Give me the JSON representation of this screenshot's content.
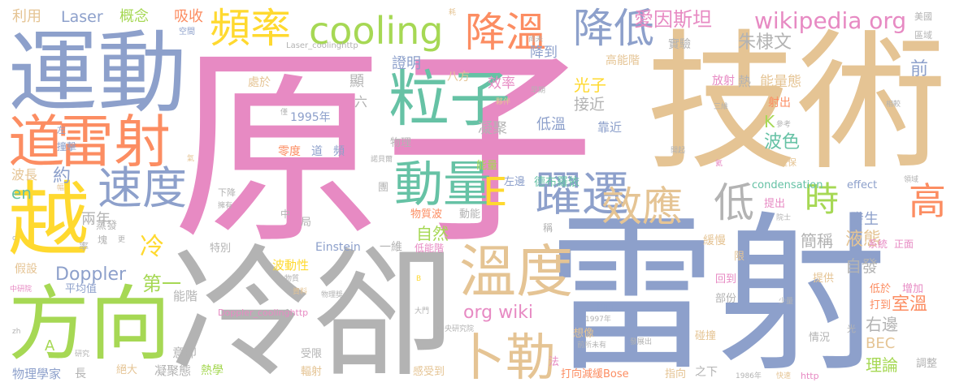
{
  "words": [
    {
      "text": "原子",
      "color": "#e78ac3"
    },
    {
      "text": "技術",
      "color": "#e5c494"
    },
    {
      "text": "雷射",
      "color": "#8da0cb"
    },
    {
      "text": "冷卻",
      "color": "#b3b3b3"
    },
    {
      "text": "運動",
      "color": "#8da0cb"
    },
    {
      "text": "越",
      "color": "#ffd92f"
    },
    {
      "text": "方向",
      "color": "#a6d854"
    },
    {
      "text": "雷射",
      "color": "#fc8d62"
    },
    {
      "text": "道",
      "color": "#fc8d62"
    },
    {
      "text": "粒子",
      "color": "#66c2a5"
    },
    {
      "text": "速度",
      "color": "#8da0cb"
    },
    {
      "text": "溫度",
      "color": "#e5c494"
    },
    {
      "text": "動量",
      "color": "#66c2a5"
    },
    {
      "text": "卜勒",
      "color": "#e5c494"
    },
    {
      "text": "躍遷",
      "color": "#8da0cb"
    },
    {
      "text": "效應",
      "color": "#e5c494"
    },
    {
      "text": "降溫",
      "color": "#fc8d62"
    },
    {
      "text": "降低",
      "color": "#8da0cb"
    },
    {
      "text": "頻率",
      "color": "#ffd92f"
    },
    {
      "text": "cooling",
      "color": "#a6d854"
    },
    {
      "text": "低",
      "color": "#b3b3b3"
    },
    {
      "text": "時",
      "color": "#a6d854"
    },
    {
      "text": "高",
      "color": "#fc8d62"
    },
    {
      "text": "E",
      "color": "#ffd92f"
    },
    {
      "text": "wikipedia org",
      "color": "#e78ac3"
    },
    {
      "text": "愛因斯坦",
      "color": "#e78ac3"
    },
    {
      "text": "朱棣文",
      "color": "#b3b3b3"
    },
    {
      "text": "Laser",
      "color": "#8da0cb"
    },
    {
      "text": "概念",
      "color": "#a6d854"
    },
    {
      "text": "吸收",
      "color": "#fc8d62"
    },
    {
      "text": "利用",
      "color": "#e5c494"
    },
    {
      "text": "Doppler",
      "color": "#8da0cb"
    },
    {
      "text": "冷",
      "color": "#ffd92f"
    },
    {
      "text": "第一",
      "color": "#a6d854"
    },
    {
      "text": "兩年",
      "color": "#b3b3b3"
    },
    {
      "text": "約",
      "color": "#8da0cb"
    },
    {
      "text": "en",
      "color": "#66c2a5"
    },
    {
      "text": "波長",
      "color": "#e5c494"
    },
    {
      "text": "org wiki",
      "color": "#e78ac3"
    },
    {
      "text": "自然",
      "color": "#a6d854"
    },
    {
      "text": "液態",
      "color": "#e5c494"
    },
    {
      "text": "自發",
      "color": "#b3b3b3"
    },
    {
      "text": "右邊",
      "color": "#b3b3b3"
    },
    {
      "text": "BEC",
      "color": "#e5c494"
    },
    {
      "text": "理論",
      "color": "#a6d854"
    },
    {
      "text": "室溫",
      "color": "#fc8d62"
    },
    {
      "text": "簡稱",
      "color": "#b3b3b3"
    },
    {
      "text": "發生",
      "color": "#8da0cb"
    },
    {
      "text": "波色",
      "color": "#66c2a5"
    },
    {
      "text": "K",
      "color": "#a6d854"
    },
    {
      "text": "能量態",
      "color": "#e5c494"
    },
    {
      "text": "前",
      "color": "#8da0cb"
    },
    {
      "text": "熱",
      "color": "#b3b3b3"
    },
    {
      "text": "放射",
      "color": "#e78ac3"
    },
    {
      "text": "射出",
      "color": "#fc8d62"
    },
    {
      "text": "高能階",
      "color": "#e5c494"
    },
    {
      "text": "實驗",
      "color": "#b3b3b3"
    },
    {
      "text": "降到",
      "color": "#8da0cb"
    },
    {
      "text": "效率",
      "color": "#e78ac3"
    },
    {
      "text": "光子",
      "color": "#ffd92f"
    },
    {
      "text": "接近",
      "color": "#b3b3b3"
    },
    {
      "text": "低溫",
      "color": "#8da0cb"
    },
    {
      "text": "靠近",
      "color": "#8da0cb"
    },
    {
      "text": "凝聚",
      "color": "#b3b3b3"
    },
    {
      "text": "證明",
      "color": "#8da0cb"
    },
    {
      "text": "顯",
      "color": "#b3b3b3"
    },
    {
      "text": "處於",
      "color": "#e5c494"
    },
    {
      "text": "八方",
      "color": "#e5c494"
    },
    {
      "text": "六",
      "color": "#b3b3b3"
    },
    {
      "text": "1995年",
      "color": "#8da0cb"
    },
    {
      "text": "零度",
      "color": "#fc8d62"
    },
    {
      "text": "道",
      "color": "#8da0cb"
    },
    {
      "text": "頻",
      "color": "#8da0cb"
    },
    {
      "text": "物理",
      "color": "#b3b3b3"
    },
    {
      "text": "能量",
      "color": "#a6d854"
    },
    {
      "text": "左邊",
      "color": "#8da0cb"
    },
    {
      "text": "德布羅依",
      "color": "#66c2a5"
    },
    {
      "text": "condensation",
      "color": "#66c2a5"
    },
    {
      "text": "effect",
      "color": "#8da0cb"
    },
    {
      "text": "提出",
      "color": "#e78ac3"
    },
    {
      "text": "系統",
      "color": "#e78ac3"
    },
    {
      "text": "正面",
      "color": "#e78ac3"
    },
    {
      "text": "物質波",
      "color": "#fc8d62"
    },
    {
      "text": "動能",
      "color": "#b3b3b3"
    },
    {
      "text": "緩慢",
      "color": "#e5c494"
    },
    {
      "text": "Einstein",
      "color": "#8da0cb"
    },
    {
      "text": "一維",
      "color": "#b3b3b3"
    },
    {
      "text": "低能階",
      "color": "#e78ac3"
    },
    {
      "text": "波動性",
      "color": "#ffd92f"
    },
    {
      "text": "特別",
      "color": "#b3b3b3"
    },
    {
      "text": "能階",
      "color": "#b3b3b3"
    },
    {
      "text": "平均值",
      "color": "#8da0cb"
    },
    {
      "text": "假設",
      "color": "#e5c494"
    },
    {
      "text": "蒸發",
      "color": "#b3b3b3"
    },
    {
      "text": "意即",
      "color": "#b3b3b3"
    },
    {
      "text": "凝聚態",
      "color": "#b3b3b3"
    },
    {
      "text": "熱學",
      "color": "#a6d854"
    },
    {
      "text": "絕大",
      "color": "#e5c494"
    },
    {
      "text": "物理學家",
      "color": "#8da0cb"
    },
    {
      "text": "長",
      "color": "#b3b3b3"
    },
    {
      "text": "受限",
      "color": "#b3b3b3"
    },
    {
      "text": "輻射",
      "color": "#e5c494"
    },
    {
      "text": "感受到",
      "color": "#e5c494"
    },
    {
      "text": "打向減緩Bose",
      "color": "#fc8d62"
    },
    {
      "text": "指向",
      "color": "#e5c494"
    },
    {
      "text": "之下",
      "color": "#b3b3b3"
    },
    {
      "text": "碰撞",
      "color": "#e5c494"
    },
    {
      "text": "情況",
      "color": "#b3b3b3"
    },
    {
      "text": "調整",
      "color": "#b3b3b3"
    },
    {
      "text": "增加",
      "color": "#e78ac3"
    },
    {
      "text": "低於",
      "color": "#fc8d62"
    },
    {
      "text": "打到",
      "color": "#fc8d62"
    },
    {
      "text": "提供",
      "color": "#e5c494"
    },
    {
      "text": "回到",
      "color": "#e78ac3"
    },
    {
      "text": "部份",
      "color": "#b3b3b3"
    },
    {
      "text": "想像",
      "color": "#e5c494"
    },
    {
      "text": "法",
      "color": "#e78ac3"
    },
    {
      "text": "A",
      "color": "#a6d854"
    },
    {
      "text": "Laser_coolinghttp",
      "color": "#b3b3b3"
    },
    {
      "text": "Doppler_coolinghttp",
      "color": "#e78ac3"
    },
    {
      "text": "中央研究院",
      "color": "#b3b3b3"
    },
    {
      "text": "前所未有",
      "color": "#b3b3b3"
    },
    {
      "text": "發展出",
      "color": "#b3b3b3"
    },
    {
      "text": "1997年",
      "color": "#b3b3b3"
    },
    {
      "text": "1986年",
      "color": "#b3b3b3"
    },
    {
      "text": "快速",
      "color": "#e5c494"
    },
    {
      "text": "http",
      "color": "#e78ac3"
    },
    {
      "text": "撞擊",
      "color": "#8da0cb"
    },
    {
      "text": "美國",
      "color": "#b3b3b3"
    },
    {
      "text": "區域",
      "color": "#b3b3b3"
    },
    {
      "text": "空間",
      "color": "#8da0cb"
    },
    {
      "text": "相較",
      "color": "#b3b3b3"
    },
    {
      "text": "確保",
      "color": "#e5c494"
    },
    {
      "text": "參考",
      "color": "#b3b3b3"
    },
    {
      "text": "開起",
      "color": "#b3b3b3"
    },
    {
      "text": "院士",
      "color": "#b3b3b3"
    },
    {
      "text": "少量",
      "color": "#b3b3b3"
    },
    {
      "text": "四面",
      "color": "#8da0cb"
    },
    {
      "text": "大門",
      "color": "#b3b3b3"
    },
    {
      "text": "物理獎",
      "color": "#b3b3b3"
    },
    {
      "text": "諾貝爾",
      "color": "#b3b3b3"
    },
    {
      "text": "中研院",
      "color": "#e78ac3"
    },
    {
      "text": "研究",
      "color": "#b3b3b3"
    },
    {
      "text": "早期",
      "color": "#b3b3b3"
    },
    {
      "text": "尚未",
      "color": "#b3b3b3"
    },
    {
      "text": "夥伴",
      "color": "#e5c494"
    },
    {
      "text": "三維",
      "color": "#b3b3b3"
    },
    {
      "text": "耗",
      "color": "#e5c494"
    },
    {
      "text": "擁有",
      "color": "#b3b3b3"
    },
    {
      "text": "下降",
      "color": "#b3b3b3"
    },
    {
      "text": "團",
      "color": "#b3b3b3"
    },
    {
      "text": "局",
      "color": "#b3b3b3"
    },
    {
      "text": "中",
      "color": "#b3b3b3"
    },
    {
      "text": "稱",
      "color": "#b3b3b3"
    },
    {
      "text": "限",
      "color": "#e5c494"
    },
    {
      "text": "物質",
      "color": "#b3b3b3"
    },
    {
      "text": "資料",
      "color": "#e5c494"
    },
    {
      "text": "B",
      "color": "#ffd92f"
    },
    {
      "text": "僅",
      "color": "#b3b3b3"
    },
    {
      "text": "塊",
      "color": "#b3b3b3"
    },
    {
      "text": "幅",
      "color": "#e5c494"
    },
    {
      "text": "率",
      "color": "#b3b3b3"
    },
    {
      "text": "更",
      "color": "#b3b3b3"
    },
    {
      "text": "氣",
      "color": "#e5c494"
    },
    {
      "text": "左",
      "color": "#8da0cb"
    },
    {
      "text": "光",
      "color": "#b3b3b3"
    },
    {
      "text": "領域",
      "color": "#b3b3b3"
    },
    {
      "text": "氦",
      "color": "#e78ac3"
    },
    {
      "text": "zh",
      "color": "#b3b3b3"
    },
    {
      "text": "c",
      "color": "#b3b3b3"
    }
  ]
}
